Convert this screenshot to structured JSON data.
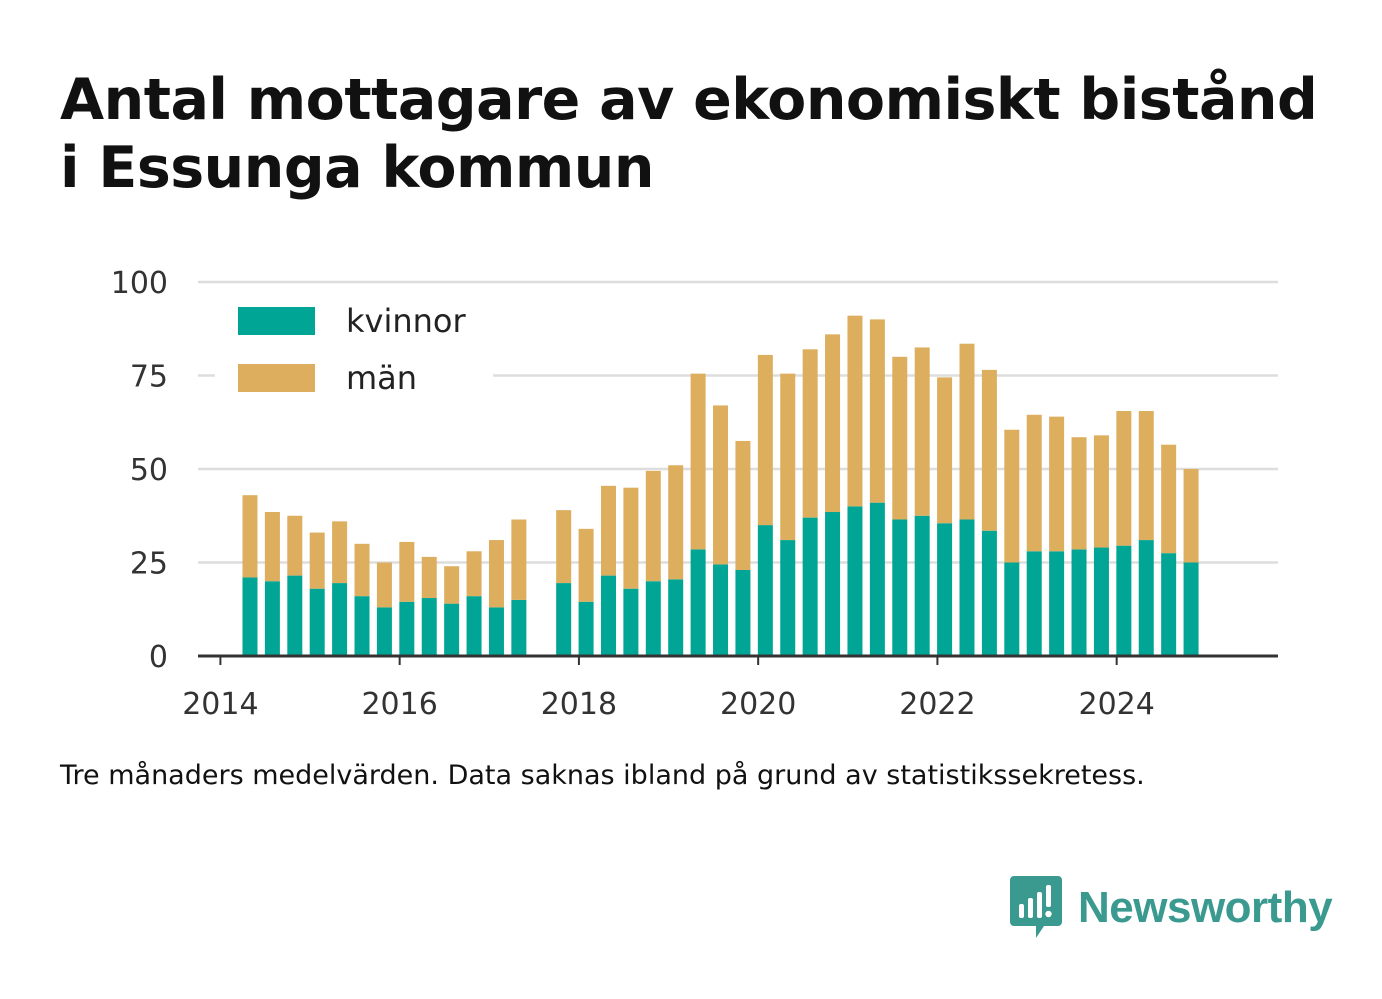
{
  "title_lines": [
    "Antal mottagare av ekonomiskt bistånd",
    "i Essunga kommun"
  ],
  "caption": "Tre månaders medelvärden. Data saknas ibland på grund av statistikssekretess.",
  "brand": {
    "name": "Newsworthy",
    "icon": "newsworthy-logo-icon",
    "color": "#3a9a90"
  },
  "colors": {
    "kvinnor": "#00a596",
    "man": "#dcae5e",
    "grid": "#dddddd",
    "axis": "#333333"
  },
  "chart_data": {
    "type": "bar",
    "stacked": true,
    "title": "Antal mottagare av ekonomiskt bistånd i Essunga kommun",
    "xlabel": "",
    "ylabel": "",
    "xlim": [
      2013.75,
      2025.8
    ],
    "ylim": [
      0,
      100
    ],
    "yticks": [
      0,
      25,
      50,
      75,
      100
    ],
    "xticks": [
      2014,
      2016,
      2018,
      2020,
      2022,
      2024
    ],
    "grid": true,
    "legend_position": "top-left",
    "x": [
      2014.33,
      2014.58,
      2014.83,
      2015.08,
      2015.33,
      2015.58,
      2015.83,
      2016.08,
      2016.33,
      2016.58,
      2016.83,
      2017.08,
      2017.33,
      2017.83,
      2018.08,
      2018.33,
      2018.58,
      2018.83,
      2019.08,
      2019.33,
      2019.58,
      2019.83,
      2020.08,
      2020.33,
      2020.58,
      2020.83,
      2021.08,
      2021.33,
      2021.58,
      2021.83,
      2022.08,
      2022.33,
      2022.58,
      2022.83,
      2023.08,
      2023.33,
      2023.58,
      2023.83,
      2024.08,
      2024.33,
      2024.58,
      2024.83
    ],
    "series": [
      {
        "name": "kvinnor",
        "values": [
          21,
          20,
          21.5,
          18,
          19.5,
          16,
          13,
          14.5,
          15.5,
          14,
          16,
          13,
          15,
          19.5,
          14.5,
          21.5,
          18,
          20,
          20.5,
          28.5,
          24.5,
          23,
          35,
          31,
          37,
          38.5,
          40,
          41,
          36.5,
          37.5,
          35.5,
          36.5,
          33.5,
          25,
          28,
          28,
          28.5,
          29,
          29.5,
          31,
          27.5,
          25
        ]
      },
      {
        "name": "män",
        "values": [
          22,
          18.5,
          16,
          15,
          16.5,
          14,
          12,
          16,
          11,
          10,
          12,
          18,
          21.5,
          19.5,
          19.5,
          24,
          27,
          29.5,
          30.5,
          47,
          42.5,
          34.5,
          45.5,
          44.5,
          45,
          47.5,
          51,
          49,
          43.5,
          45,
          39,
          47,
          43,
          35.5,
          36.5,
          36,
          30,
          30,
          36,
          34.5,
          29,
          25
        ]
      }
    ]
  }
}
